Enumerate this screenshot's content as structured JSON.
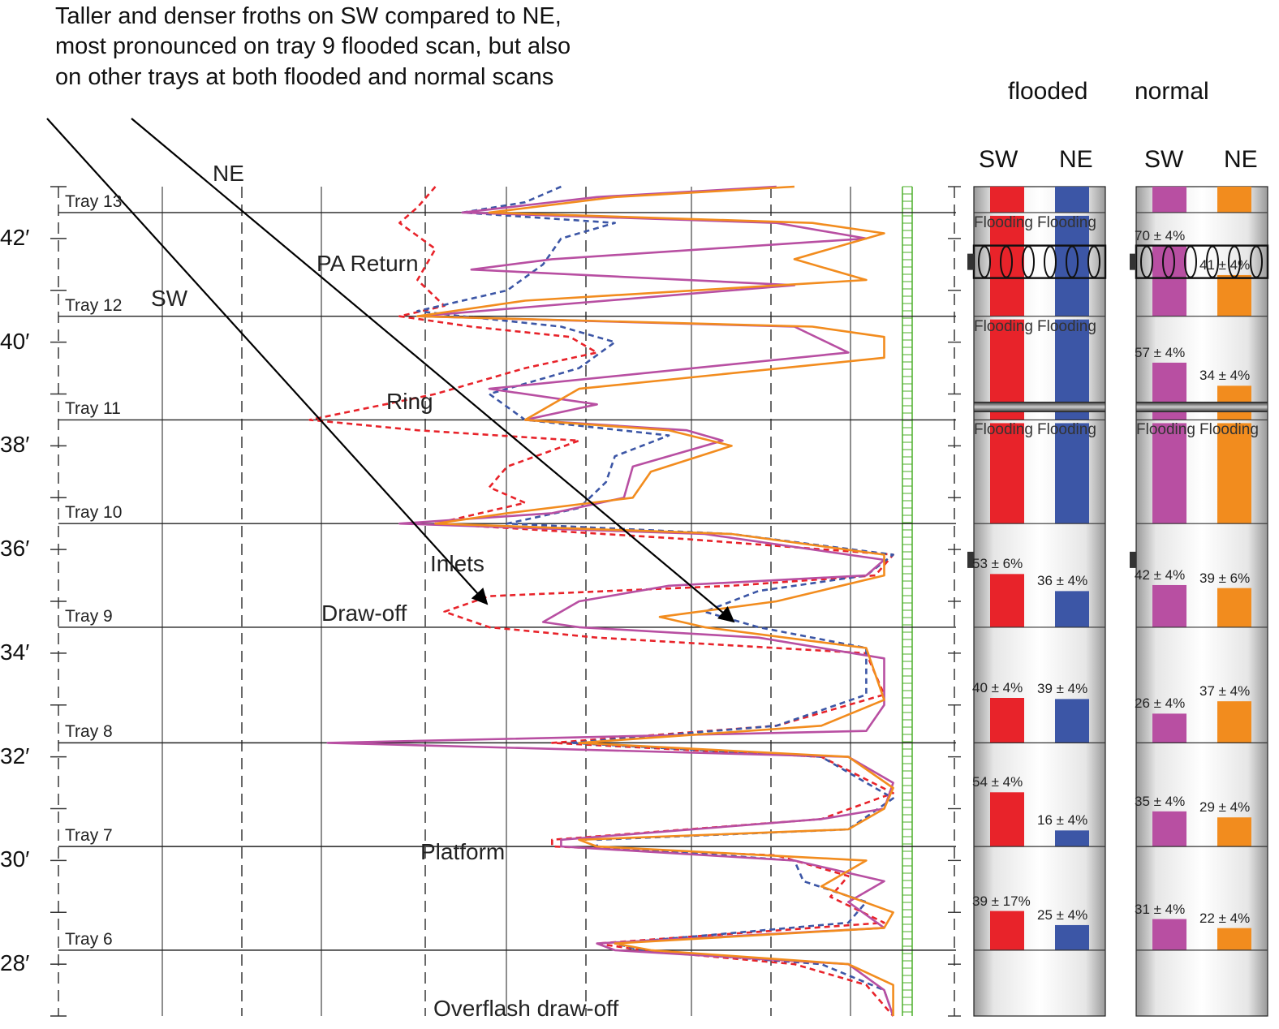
{
  "annotation": {
    "lines": [
      "Taller and denser froths on SW compared to NE,",
      "most pronounced on tray 9 flooded scan, but also",
      "on other trays at both flooded and normal scans"
    ]
  },
  "column_headers": {
    "flooded": "flooded",
    "normal": "normal",
    "sw": "SW",
    "ne": "NE"
  },
  "arrow_labels": {
    "ne": "NE",
    "sw": "SW"
  },
  "features": [
    "PA Return",
    "Ring",
    "Inlets",
    "Draw-off",
    "Platform",
    "Overflash draw-off"
  ],
  "colors": {
    "flooded_sw": "#e8232a",
    "flooded_ne": "#3c56a6",
    "normal_sw": "#b84fa2",
    "normal_ne": "#f28c1e",
    "reference": "#4caf2a"
  },
  "chart_data": {
    "type": "line",
    "y_axis": {
      "unit": "ft",
      "range": [
        27,
        43
      ],
      "ticks": [
        {
          "value": 28,
          "label": "28′"
        },
        {
          "value": 30,
          "label": "30′"
        },
        {
          "value": 32,
          "label": "32′"
        },
        {
          "value": 34,
          "label": "34′"
        },
        {
          "value": 36,
          "label": "36′"
        },
        {
          "value": 38,
          "label": "38′"
        },
        {
          "value": 40,
          "label": "40′"
        },
        {
          "value": 42,
          "label": "42′"
        }
      ]
    },
    "x_axis": {
      "range": [
        0,
        1
      ]
    },
    "trays": [
      {
        "label": "Tray 13",
        "elevation": 42.5
      },
      {
        "label": "Tray 12",
        "elevation": 40.5
      },
      {
        "label": "Tray 11",
        "elevation": 38.5
      },
      {
        "label": "Tray 10",
        "elevation": 36.5
      },
      {
        "label": "Tray 9",
        "elevation": 34.5
      },
      {
        "label": "Tray 8",
        "elevation": 32.27
      },
      {
        "label": "Tray 7",
        "elevation": 30.27
      },
      {
        "label": "Tray 6",
        "elevation": 28.27
      }
    ],
    "series": [
      {
        "key": "flooded_sw",
        "dash": true,
        "points": [
          [
            0.42,
            43.0
          ],
          [
            0.4,
            42.6
          ],
          [
            0.38,
            42.3
          ],
          [
            0.42,
            41.8
          ],
          [
            0.4,
            41.2
          ],
          [
            0.43,
            40.7
          ],
          [
            0.38,
            40.5
          ],
          [
            0.46,
            40.3
          ],
          [
            0.57,
            40.1
          ],
          [
            0.6,
            39.8
          ],
          [
            0.52,
            39.5
          ],
          [
            0.42,
            39.0
          ],
          [
            0.28,
            38.5
          ],
          [
            0.4,
            38.3
          ],
          [
            0.58,
            38.1
          ],
          [
            0.5,
            37.6
          ],
          [
            0.48,
            37.2
          ],
          [
            0.52,
            36.9
          ],
          [
            0.42,
            36.5
          ],
          [
            0.7,
            36.2
          ],
          [
            0.93,
            35.9
          ],
          [
            0.91,
            35.5
          ],
          [
            0.75,
            35.3
          ],
          [
            0.48,
            35.1
          ],
          [
            0.43,
            34.8
          ],
          [
            0.48,
            34.5
          ],
          [
            0.6,
            34.3
          ],
          [
            0.9,
            34.0
          ],
          [
            0.92,
            33.2
          ],
          [
            0.8,
            32.6
          ],
          [
            0.55,
            32.27
          ],
          [
            0.85,
            32.0
          ],
          [
            0.93,
            31.3
          ],
          [
            0.85,
            30.8
          ],
          [
            0.55,
            30.4
          ],
          [
            0.55,
            30.27
          ],
          [
            0.8,
            30.1
          ],
          [
            0.88,
            29.7
          ],
          [
            0.86,
            29.3
          ],
          [
            0.92,
            28.8
          ],
          [
            0.6,
            28.4
          ],
          [
            0.65,
            28.27
          ],
          [
            0.82,
            28.0
          ],
          [
            0.9,
            27.6
          ],
          [
            0.93,
            27.0
          ]
        ]
      },
      {
        "key": "flooded_ne",
        "dash": true,
        "points": [
          [
            0.56,
            43.0
          ],
          [
            0.52,
            42.7
          ],
          [
            0.45,
            42.5
          ],
          [
            0.62,
            42.3
          ],
          [
            0.56,
            42.0
          ],
          [
            0.54,
            41.5
          ],
          [
            0.5,
            41.0
          ],
          [
            0.4,
            40.6
          ],
          [
            0.45,
            40.5
          ],
          [
            0.56,
            40.3
          ],
          [
            0.62,
            40.0
          ],
          [
            0.58,
            39.5
          ],
          [
            0.48,
            39.0
          ],
          [
            0.52,
            38.5
          ],
          [
            0.68,
            38.2
          ],
          [
            0.62,
            37.8
          ],
          [
            0.61,
            37.3
          ],
          [
            0.58,
            36.8
          ],
          [
            0.5,
            36.5
          ],
          [
            0.75,
            36.3
          ],
          [
            0.93,
            35.9
          ],
          [
            0.9,
            35.5
          ],
          [
            0.78,
            35.2
          ],
          [
            0.72,
            34.8
          ],
          [
            0.78,
            34.5
          ],
          [
            0.9,
            34.1
          ],
          [
            0.9,
            33.2
          ],
          [
            0.8,
            32.6
          ],
          [
            0.57,
            32.27
          ],
          [
            0.85,
            32.0
          ],
          [
            0.93,
            31.2
          ],
          [
            0.88,
            30.6
          ],
          [
            0.6,
            30.4
          ],
          [
            0.6,
            30.27
          ],
          [
            0.82,
            30.0
          ],
          [
            0.83,
            29.6
          ],
          [
            0.9,
            29.2
          ],
          [
            0.88,
            28.8
          ],
          [
            0.62,
            28.4
          ],
          [
            0.65,
            28.27
          ],
          [
            0.85,
            28.0
          ],
          [
            0.92,
            27.5
          ],
          [
            0.93,
            27.0
          ]
        ]
      },
      {
        "key": "normal_sw",
        "dash": false,
        "points": [
          [
            0.8,
            43.0
          ],
          [
            0.6,
            42.8
          ],
          [
            0.45,
            42.5
          ],
          [
            0.8,
            42.3
          ],
          [
            0.9,
            42.0
          ],
          [
            0.55,
            41.6
          ],
          [
            0.46,
            41.4
          ],
          [
            0.82,
            41.1
          ],
          [
            0.4,
            40.5
          ],
          [
            0.82,
            40.3
          ],
          [
            0.88,
            39.8
          ],
          [
            0.48,
            39.1
          ],
          [
            0.6,
            38.8
          ],
          [
            0.52,
            38.5
          ],
          [
            0.7,
            38.3
          ],
          [
            0.74,
            38.1
          ],
          [
            0.64,
            37.6
          ],
          [
            0.63,
            37.0
          ],
          [
            0.55,
            36.7
          ],
          [
            0.38,
            36.5
          ],
          [
            0.72,
            36.3
          ],
          [
            0.92,
            35.8
          ],
          [
            0.9,
            35.5
          ],
          [
            0.68,
            35.3
          ],
          [
            0.58,
            35.0
          ],
          [
            0.54,
            34.6
          ],
          [
            0.58,
            34.5
          ],
          [
            0.78,
            34.3
          ],
          [
            0.92,
            33.9
          ],
          [
            0.92,
            33.0
          ],
          [
            0.9,
            32.5
          ],
          [
            0.3,
            32.27
          ],
          [
            0.88,
            32.0
          ],
          [
            0.93,
            31.5
          ],
          [
            0.92,
            31.0
          ],
          [
            0.85,
            30.8
          ],
          [
            0.56,
            30.4
          ],
          [
            0.56,
            30.27
          ],
          [
            0.82,
            30.0
          ],
          [
            0.92,
            29.6
          ],
          [
            0.88,
            29.2
          ],
          [
            0.92,
            28.7
          ],
          [
            0.6,
            28.4
          ],
          [
            0.62,
            28.27
          ],
          [
            0.88,
            28.0
          ],
          [
            0.92,
            27.5
          ],
          [
            0.93,
            27.0
          ]
        ]
      },
      {
        "key": "normal_ne",
        "dash": false,
        "points": [
          [
            0.82,
            43.0
          ],
          [
            0.62,
            42.8
          ],
          [
            0.48,
            42.5
          ],
          [
            0.84,
            42.3
          ],
          [
            0.92,
            42.1
          ],
          [
            0.82,
            41.6
          ],
          [
            0.9,
            41.2
          ],
          [
            0.52,
            40.8
          ],
          [
            0.4,
            40.5
          ],
          [
            0.84,
            40.3
          ],
          [
            0.92,
            40.1
          ],
          [
            0.92,
            39.7
          ],
          [
            0.58,
            39.1
          ],
          [
            0.55,
            38.8
          ],
          [
            0.52,
            38.5
          ],
          [
            0.68,
            38.3
          ],
          [
            0.75,
            38.0
          ],
          [
            0.66,
            37.5
          ],
          [
            0.64,
            37.0
          ],
          [
            0.5,
            36.7
          ],
          [
            0.42,
            36.5
          ],
          [
            0.75,
            36.3
          ],
          [
            0.92,
            35.9
          ],
          [
            0.92,
            35.5
          ],
          [
            0.8,
            35.0
          ],
          [
            0.67,
            34.7
          ],
          [
            0.72,
            34.5
          ],
          [
            0.9,
            34.1
          ],
          [
            0.92,
            33.1
          ],
          [
            0.85,
            32.6
          ],
          [
            0.58,
            32.27
          ],
          [
            0.88,
            32.0
          ],
          [
            0.93,
            31.4
          ],
          [
            0.92,
            31.0
          ],
          [
            0.88,
            30.6
          ],
          [
            0.58,
            30.4
          ],
          [
            0.6,
            30.27
          ],
          [
            0.9,
            30.0
          ],
          [
            0.85,
            29.5
          ],
          [
            0.93,
            29.0
          ],
          [
            0.92,
            28.7
          ],
          [
            0.62,
            28.4
          ],
          [
            0.66,
            28.27
          ],
          [
            0.88,
            28.0
          ],
          [
            0.93,
            27.6
          ],
          [
            0.93,
            27.0
          ]
        ]
      }
    ],
    "flooded_bars": [
      {
        "tray_band": "Tray 12-13",
        "sw": "Flooding",
        "ne": "Flooding"
      },
      {
        "tray_band": "Tray 11-12",
        "sw": "Flooding",
        "ne": "Flooding"
      },
      {
        "tray_band": "Tray 10-11",
        "sw": "Flooding",
        "ne": "Flooding"
      },
      {
        "tray_band": "Tray 9-10",
        "sw": "53 ± 6%",
        "ne": "36 ± 4%",
        "sw_value": 53,
        "ne_value": 36
      },
      {
        "tray_band": "Tray 8-9",
        "sw": "40 ± 4%",
        "ne": "39 ± 4%",
        "sw_value": 40,
        "ne_value": 39
      },
      {
        "tray_band": "Tray 7-8",
        "sw": "54 ± 4%",
        "ne": "16 ± 4%",
        "sw_value": 54,
        "ne_value": 16
      },
      {
        "tray_band": "Tray 6-7",
        "sw": "39 ± 17%",
        "ne": "25 ± 4%",
        "sw_value": 39,
        "ne_value": 25
      }
    ],
    "normal_bars": [
      {
        "tray_band": "Tray 12-13",
        "sw": "70 ± 4%",
        "ne": "41 ± 4%",
        "sw_value": 70,
        "ne_value": 41
      },
      {
        "tray_band": "Tray 11-12",
        "sw": "57 ± 4%",
        "ne": "34 ± 4%",
        "sw_value": 57,
        "ne_value": 34
      },
      {
        "tray_band": "Tray 10-11",
        "sw": "Flooding",
        "ne": "Flooding"
      },
      {
        "tray_band": "Tray 9-10",
        "sw": "42 ± 4%",
        "ne": "39 ± 6%",
        "sw_value": 42,
        "ne_value": 39
      },
      {
        "tray_band": "Tray 8-9",
        "sw": "26 ± 4%",
        "ne": "37 ± 4%",
        "sw_value": 26,
        "ne_value": 37
      },
      {
        "tray_band": "Tray 7-8",
        "sw": "35 ± 4%",
        "ne": "29 ± 4%",
        "sw_value": 35,
        "ne_value": 29
      },
      {
        "tray_band": "Tray 6-7",
        "sw": "31 ± 4%",
        "ne": "22 ± 4%",
        "sw_value": 31,
        "ne_value": 22
      }
    ]
  }
}
